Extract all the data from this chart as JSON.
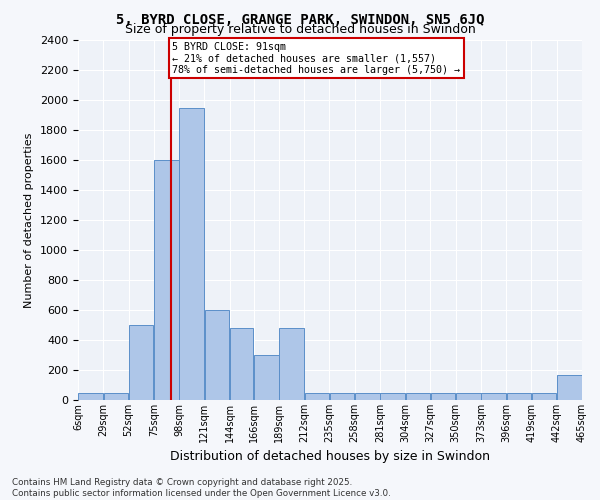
{
  "title": "5, BYRD CLOSE, GRANGE PARK, SWINDON, SN5 6JQ",
  "subtitle": "Size of property relative to detached houses in Swindon",
  "xlabel": "Distribution of detached houses by size in Swindon",
  "ylabel": "Number of detached properties",
  "bar_color": "#aec6e8",
  "bar_edge_color": "#5b8fc9",
  "property_size": 91,
  "property_line_color": "#cc0000",
  "annotation_box_color": "#cc0000",
  "annotation_line1": "5 BYRD CLOSE: 91sqm",
  "annotation_line2": "← 21% of detached houses are smaller (1,557)",
  "annotation_line3": "78% of semi-detached houses are larger (5,750) →",
  "footer_line1": "Contains HM Land Registry data © Crown copyright and database right 2025.",
  "footer_line2": "Contains public sector information licensed under the Open Government Licence v3.0.",
  "tick_labels": [
    "6sqm",
    "29sqm",
    "52sqm",
    "75sqm",
    "98sqm",
    "121sqm",
    "144sqm",
    "166sqm",
    "189sqm",
    "212sqm",
    "235sqm",
    "258sqm",
    "281sqm",
    "304sqm",
    "327sqm",
    "350sqm",
    "373sqm",
    "396sqm",
    "419sqm",
    "442sqm",
    "465sqm"
  ],
  "bin_edges": [
    6,
    29,
    52,
    75,
    98,
    121,
    144,
    166,
    189,
    212,
    235,
    258,
    281,
    304,
    327,
    350,
    373,
    396,
    419,
    442,
    465
  ],
  "bar_heights": [
    50,
    50,
    500,
    1600,
    1950,
    600,
    480,
    300,
    480,
    50,
    50,
    50,
    50,
    50,
    50,
    50,
    50,
    50,
    50,
    170
  ],
  "ylim": [
    0,
    2400
  ],
  "yticks": [
    0,
    200,
    400,
    600,
    800,
    1000,
    1200,
    1400,
    1600,
    1800,
    2000,
    2200,
    2400
  ],
  "background_color": "#eef2f8",
  "grid_color": "#ffffff",
  "fig_background": "#f5f7fb"
}
